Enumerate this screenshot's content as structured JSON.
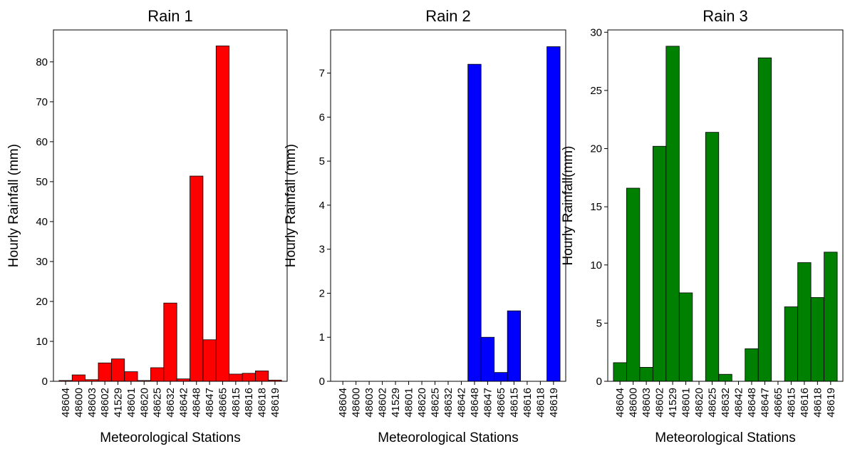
{
  "chart_data": [
    {
      "type": "bar",
      "title": "Rain 1",
      "xlabel": "Meteorological Stations",
      "ylabel": "Hourly Rainfall (mm)",
      "categories": [
        "48604",
        "48600",
        "48603",
        "48602",
        "41529",
        "48601",
        "48620",
        "48625",
        "48632",
        "48642",
        "48648",
        "48647",
        "48665",
        "48615",
        "48616",
        "48618",
        "48619"
      ],
      "values": [
        0.2,
        1.6,
        0.4,
        4.6,
        5.6,
        2.4,
        0.2,
        3.4,
        19.6,
        0.6,
        51.4,
        10.4,
        84.0,
        1.8,
        2.0,
        2.6,
        0.3
      ],
      "ylim": [
        0,
        88
      ],
      "yticks": [
        0,
        10,
        20,
        30,
        40,
        50,
        60,
        70,
        80
      ],
      "color": "#ff0000",
      "grid": false
    },
    {
      "type": "bar",
      "title": "Rain 2",
      "xlabel": "Meteorological Stations",
      "ylabel": "Hourly Rainfall (mm)",
      "categories": [
        "48604",
        "48600",
        "48603",
        "48602",
        "41529",
        "48601",
        "48620",
        "48625",
        "48632",
        "48642",
        "48648",
        "48647",
        "48665",
        "48615",
        "48616",
        "48618",
        "48619"
      ],
      "values": [
        0,
        0,
        0,
        0,
        0,
        0,
        0,
        0,
        0,
        0,
        7.2,
        1.0,
        0.2,
        1.6,
        0,
        0,
        7.6
      ],
      "ylim": [
        0,
        7.98
      ],
      "yticks": [
        0,
        1,
        2,
        3,
        4,
        5,
        6,
        7
      ],
      "color": "#0000ff",
      "grid": false
    },
    {
      "type": "bar",
      "title": "Rain 3",
      "xlabel": "Meteorological Stations",
      "ylabel": "Hourly Rainfall(mm)",
      "categories": [
        "48604",
        "48600",
        "48603",
        "48602",
        "41529",
        "48601",
        "48620",
        "48625",
        "48632",
        "48642",
        "48648",
        "48647",
        "48665",
        "48615",
        "48616",
        "48618",
        "48619"
      ],
      "values": [
        1.6,
        16.6,
        1.2,
        20.2,
        28.8,
        7.6,
        0,
        21.4,
        0.6,
        0,
        2.8,
        27.8,
        0,
        6.4,
        10.2,
        7.2,
        11.1
      ],
      "ylim": [
        0,
        30.2
      ],
      "yticks": [
        0,
        5,
        10,
        15,
        20,
        25,
        30
      ],
      "color": "#008000",
      "grid": false
    }
  ]
}
